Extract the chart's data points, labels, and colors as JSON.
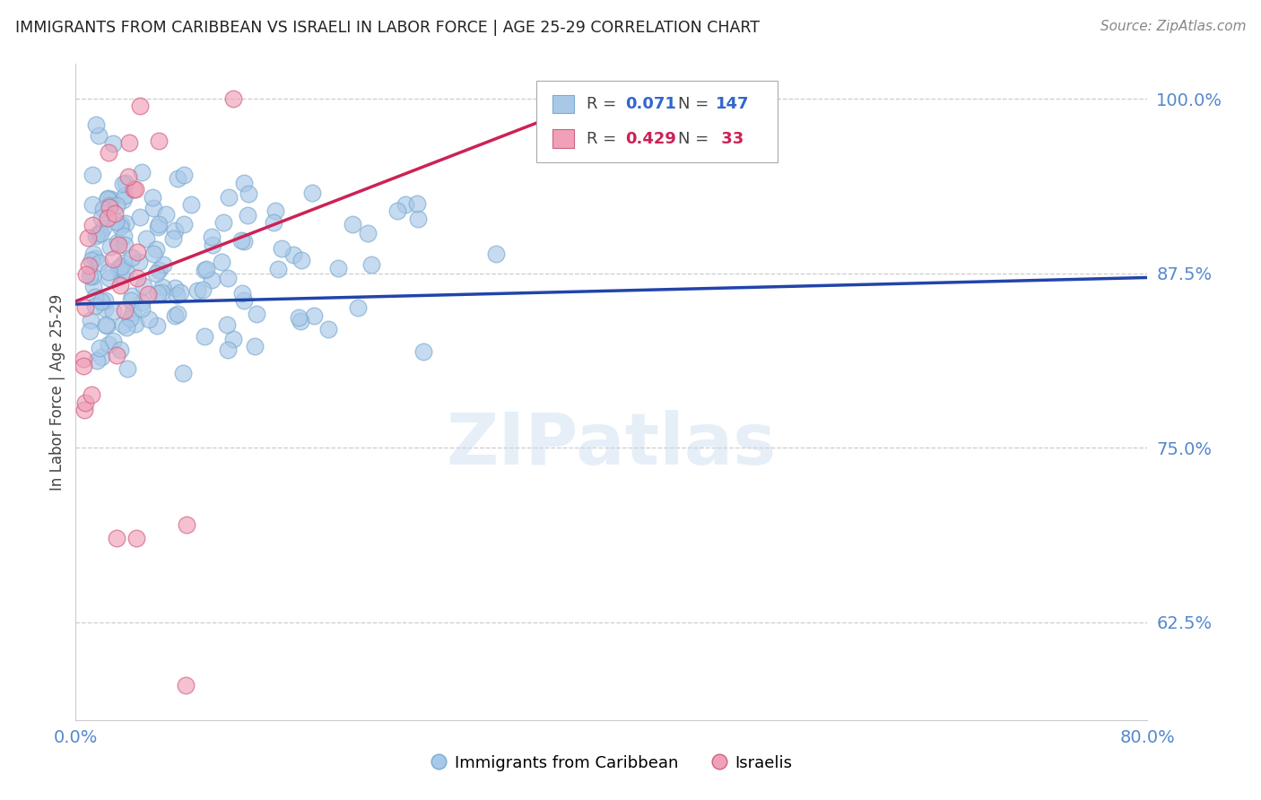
{
  "title": "IMMIGRANTS FROM CARIBBEAN VS ISRAELI IN LABOR FORCE | AGE 25-29 CORRELATION CHART",
  "source": "Source: ZipAtlas.com",
  "ylabel": "In Labor Force | Age 25-29",
  "xlim": [
    0.0,
    0.8
  ],
  "ylim": [
    0.555,
    1.025
  ],
  "yticks": [
    0.625,
    0.75,
    0.875,
    1.0
  ],
  "ytick_labels": [
    "62.5%",
    "75.0%",
    "87.5%",
    "100.0%"
  ],
  "watermark": "ZIPatlas",
  "blue_color": "#a8c8e8",
  "blue_edge_color": "#7aaad0",
  "pink_color": "#f0a0b8",
  "pink_edge_color": "#d06080",
  "blue_line_color": "#2244aa",
  "pink_line_color": "#cc2255",
  "blue_r": "0.071",
  "blue_n": "147",
  "pink_r": "0.429",
  "pink_n": "33",
  "legend_label_blue": "Immigrants from Caribbean",
  "legend_label_pink": "Israelis",
  "blue_line_x0": 0.0,
  "blue_line_y0": 0.853,
  "blue_line_x1": 0.8,
  "blue_line_y1": 0.872,
  "pink_line_x0": 0.0,
  "pink_line_y0": 0.855,
  "pink_line_x1": 0.35,
  "pink_line_y1": 0.985
}
